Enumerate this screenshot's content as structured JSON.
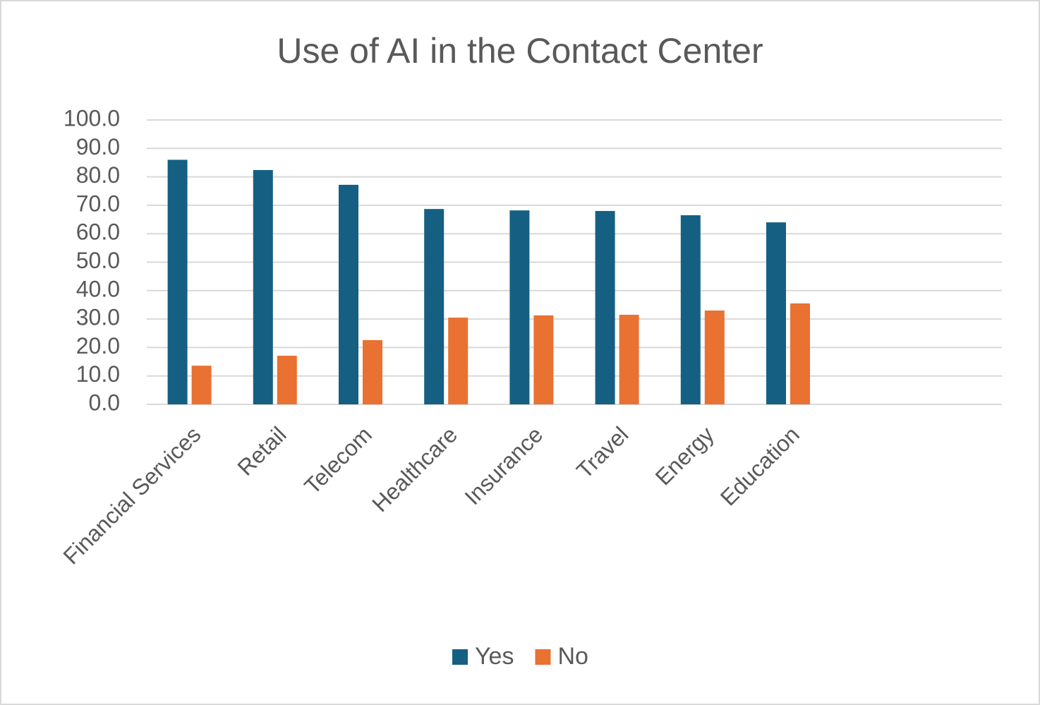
{
  "chart_data": {
    "type": "bar",
    "title": "Use of AI in the Contact Center",
    "categories": [
      "Financial Services",
      "Retail",
      "Telecom",
      "Healthcare",
      "Insurance",
      "Travel",
      "Energy",
      "Education",
      null,
      null
    ],
    "series": [
      {
        "name": "Yes",
        "color": "#156082",
        "values": [
          86.0,
          82.4,
          77.2,
          68.7,
          68.2,
          68.0,
          66.5,
          64.0,
          null,
          null
        ]
      },
      {
        "name": "No",
        "color": "#e97132",
        "values": [
          13.6,
          17.1,
          22.6,
          30.5,
          31.3,
          31.5,
          33.0,
          35.5,
          null,
          null
        ]
      }
    ],
    "ylim": [
      0,
      100
    ],
    "yticks": [
      {
        "value": 0,
        "label": "0.0"
      },
      {
        "value": 10,
        "label": "10.0"
      },
      {
        "value": 20,
        "label": "20.0"
      },
      {
        "value": 30,
        "label": "30.0"
      },
      {
        "value": 40,
        "label": "40.0"
      },
      {
        "value": 50,
        "label": "50.0"
      },
      {
        "value": 60,
        "label": "60.0"
      },
      {
        "value": 70,
        "label": "70.0"
      },
      {
        "value": 80,
        "label": "80.0"
      },
      {
        "value": 90,
        "label": "90.0"
      },
      {
        "value": 100,
        "label": "100.0"
      }
    ],
    "grid": true,
    "legend": "bottom"
  }
}
